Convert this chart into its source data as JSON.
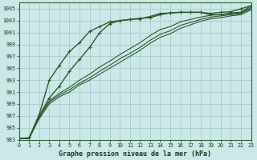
{
  "title": "Graphe pression niveau de la mer (hPa)",
  "bg_color": "#cce8e8",
  "grid_color": "#aacccc",
  "line_color": "#2d5a2d",
  "xlim": [
    0,
    23
  ],
  "ylim": [
    983,
    1006
  ],
  "yticks": [
    983,
    985,
    987,
    989,
    991,
    993,
    995,
    997,
    999,
    1001,
    1003,
    1005
  ],
  "xticks": [
    0,
    1,
    2,
    3,
    4,
    5,
    6,
    7,
    8,
    9,
    10,
    11,
    12,
    13,
    14,
    15,
    16,
    17,
    18,
    19,
    20,
    21,
    22,
    23
  ],
  "series": [
    {
      "x": [
        0,
        1,
        2,
        3,
        4,
        5,
        6,
        7,
        8,
        9,
        10,
        11,
        12,
        13,
        14,
        15,
        16,
        17,
        18,
        19,
        20,
        21,
        22,
        23
      ],
      "y": [
        983.2,
        983.3,
        987.2,
        993.0,
        995.5,
        997.8,
        999.3,
        1001.2,
        1002.0,
        1002.8,
        1003.0,
        1003.2,
        1003.3,
        1003.7,
        1004.2,
        1004.3,
        1004.4,
        1004.4,
        1004.4,
        1004.0,
        1004.0,
        1004.3,
        1004.4,
        1005.5
      ],
      "marker": true,
      "lw": 1.0
    },
    {
      "x": [
        0,
        1,
        2,
        3,
        4,
        5,
        6,
        7,
        8,
        9,
        10,
        11,
        12,
        13,
        14,
        15,
        16,
        17,
        18,
        19,
        20,
        21,
        22,
        23
      ],
      "y": [
        983.2,
        983.3,
        987.0,
        990.0,
        992.0,
        994.5,
        996.5,
        998.5,
        1001.0,
        1002.5,
        1003.0,
        1003.2,
        1003.4,
        1003.5,
        1004.0,
        1004.3,
        1004.4,
        1004.4,
        1004.4,
        1004.2,
        1004.4,
        1004.5,
        1005.0,
        1005.5
      ],
      "marker": true,
      "lw": 1.0
    },
    {
      "x": [
        0,
        1,
        2,
        3,
        4,
        5,
        6,
        7,
        8,
        9,
        10,
        11,
        12,
        13,
        14,
        15,
        16,
        17,
        18,
        19,
        20,
        21,
        22,
        23
      ],
      "y": [
        983.2,
        983.2,
        987.0,
        989.5,
        990.8,
        991.8,
        993.0,
        994.0,
        995.2,
        996.2,
        997.3,
        998.3,
        999.3,
        1000.5,
        1001.5,
        1002.0,
        1002.8,
        1003.2,
        1003.6,
        1003.9,
        1004.0,
        1004.1,
        1004.3,
        1005.2
      ],
      "marker": false,
      "lw": 0.8
    },
    {
      "x": [
        0,
        1,
        2,
        3,
        4,
        5,
        6,
        7,
        8,
        9,
        10,
        11,
        12,
        13,
        14,
        15,
        16,
        17,
        18,
        19,
        20,
        21,
        22,
        23
      ],
      "y": [
        983.2,
        983.2,
        986.8,
        989.3,
        990.5,
        991.4,
        992.5,
        993.4,
        994.5,
        995.5,
        996.6,
        997.5,
        998.5,
        999.7,
        1000.7,
        1001.3,
        1002.2,
        1002.7,
        1003.2,
        1003.6,
        1003.8,
        1004.0,
        1004.2,
        1005.0
      ],
      "marker": false,
      "lw": 0.8
    },
    {
      "x": [
        0,
        1,
        2,
        3,
        4,
        5,
        6,
        7,
        8,
        9,
        10,
        11,
        12,
        13,
        14,
        15,
        16,
        17,
        18,
        19,
        20,
        21,
        22,
        23
      ],
      "y": [
        983.2,
        983.2,
        986.5,
        989.0,
        990.2,
        991.0,
        992.2,
        993.0,
        994.0,
        995.0,
        996.0,
        997.0,
        998.0,
        999.2,
        1000.2,
        1000.8,
        1001.7,
        1002.3,
        1002.9,
        1003.3,
        1003.5,
        1003.8,
        1004.0,
        1004.8
      ],
      "marker": false,
      "lw": 0.8
    }
  ]
}
